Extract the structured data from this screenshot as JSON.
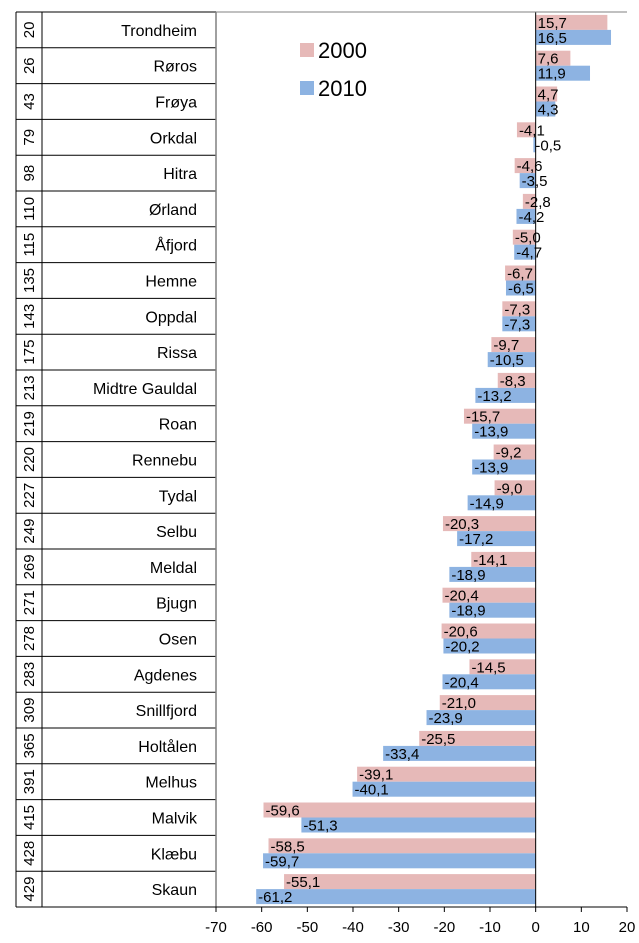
{
  "chart_data": {
    "type": "bar",
    "orientation": "horizontal",
    "categories": [
      "Trondheim",
      "Røros",
      "Frøya",
      "Orkdal",
      "Hitra",
      "Ørland",
      "Åfjord",
      "Hemne",
      "Oppdal",
      "Rissa",
      "Midtre Gauldal",
      "Roan",
      "Rennebu",
      "Tydal",
      "Selbu",
      "Meldal",
      "Bjugn",
      "Osen",
      "Agdenes",
      "Snillfjord",
      "Holtålen",
      "Melhus",
      "Malvik",
      "Klæbu",
      "Skaun"
    ],
    "row_labels": [
      "20",
      "26",
      "43",
      "79",
      "98",
      "110",
      "115",
      "135",
      "143",
      "175",
      "213",
      "219",
      "220",
      "227",
      "249",
      "269",
      "271",
      "278",
      "283",
      "309",
      "365",
      "391",
      "415",
      "428",
      "429"
    ],
    "series": [
      {
        "name": "2000",
        "color": "#e6b9b8",
        "values": [
          15.7,
          7.6,
          4.7,
          -4.1,
          -4.6,
          -2.8,
          -5.0,
          -6.7,
          -7.3,
          -9.7,
          -8.3,
          -15.7,
          -9.2,
          -9.0,
          -20.3,
          -14.1,
          -20.4,
          -20.6,
          -14.5,
          -21.0,
          -25.5,
          -39.1,
          -59.6,
          -58.5,
          -55.1
        ],
        "labels": [
          "15,7",
          "7,6",
          "4,7",
          "-4,1",
          "-4,6",
          "-2,8",
          "-5,0",
          "-6,7",
          "-7,3",
          "-9,7",
          "-8,3",
          "-15,7",
          "-9,2",
          "-9,0",
          "-20,3",
          "-14,1",
          "-20,4",
          "-20,6",
          "-14,5",
          "-21,0",
          "-25,5",
          "-39,1",
          "-59,6",
          "-58,5",
          "-55,1"
        ]
      },
      {
        "name": "2010",
        "color": "#8db3e2",
        "values": [
          16.5,
          11.9,
          4.3,
          -0.5,
          -3.5,
          -4.2,
          -4.7,
          -6.5,
          -7.3,
          -10.5,
          -13.2,
          -13.9,
          -13.9,
          -14.9,
          -17.2,
          -18.9,
          -18.9,
          -20.2,
          -20.4,
          -23.9,
          -33.4,
          -40.1,
          -51.3,
          -59.7,
          -61.2
        ],
        "labels": [
          "16,5",
          "11,9",
          "4,3",
          "-0,5",
          "-3,5",
          "-4,2",
          "-4,7",
          "-6,5",
          "-7,3",
          "-10,5",
          "-13,2",
          "-13,9",
          "-13,9",
          "-14,9",
          "-17,2",
          "-18,9",
          "-18,9",
          "-20,2",
          "-20,4",
          "-23,9",
          "-33,4",
          "-40,1",
          "-51,3",
          "-59,7",
          "-61,2"
        ]
      }
    ],
    "xlim": [
      -70,
      20
    ],
    "xticks": [
      -70,
      -60,
      -50,
      -40,
      -30,
      -20,
      -10,
      0,
      10,
      20
    ],
    "xtick_labels": [
      "-70",
      "-60",
      "-50",
      "-40",
      "-30",
      "-20",
      "-10",
      "0",
      "10",
      "20"
    ],
    "legend_position": "top-left",
    "grid": false
  }
}
